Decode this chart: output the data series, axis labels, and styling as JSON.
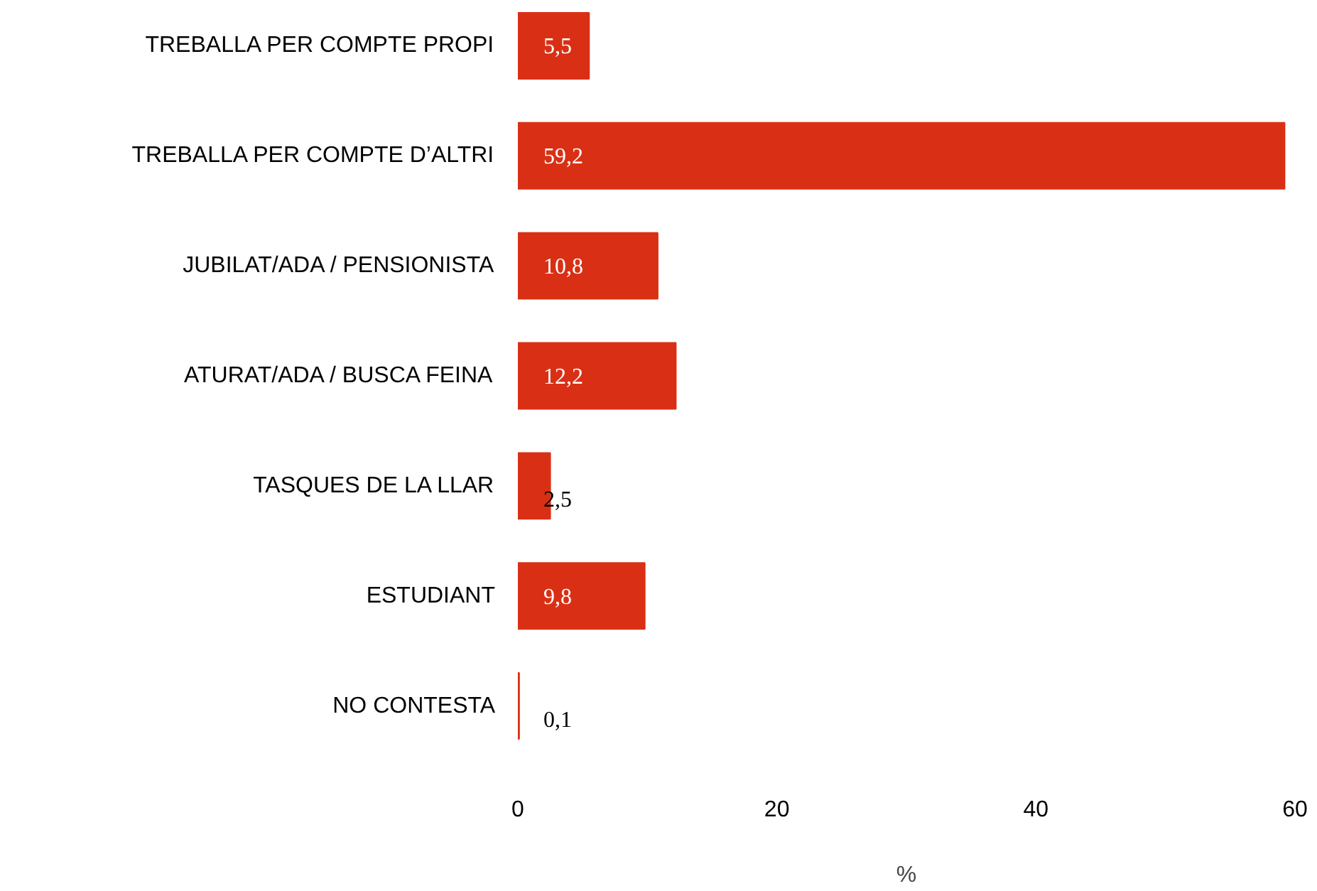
{
  "chart_data": {
    "type": "bar",
    "orientation": "horizontal",
    "xlabel": "%",
    "categories": [
      "TREBALLA PER COMPTE PROPI",
      "TREBALLA PER COMPTE D’ALTRI",
      "JUBILAT/ADA / PENSIONISTA",
      "ATURAT/ADA / BUSCA FEINA",
      "TASQUES DE LA LLAR",
      "ESTUDIANT",
      "NO CONTESTA"
    ],
    "values": [
      5.5,
      59.2,
      10.8,
      12.2,
      2.5,
      9.8,
      0.1
    ],
    "value_labels": [
      "5,5",
      "59,2",
      "10,8",
      "12,2",
      "2,5",
      "9,8",
      "0,1"
    ],
    "color": "#d93015",
    "xlim": [
      0,
      60
    ],
    "xticks": [
      0,
      20,
      40,
      60
    ],
    "grid": false
  }
}
